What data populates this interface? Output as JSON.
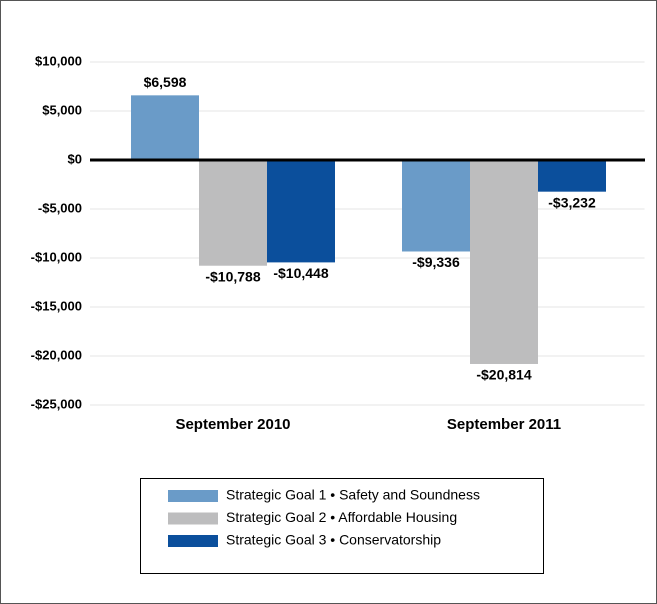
{
  "chart_data": {
    "type": "bar",
    "categories": [
      "September 2010",
      "September 2011"
    ],
    "series": [
      {
        "name": "Strategic Goal 1 • Safety and Soundness",
        "color": "#6a9bc8",
        "values": [
          6598,
          -9336
        ],
        "value_labels": [
          "$6,598",
          "-$9,336"
        ]
      },
      {
        "name": "Strategic Goal 2 • Affordable Housing",
        "color": "#bdbdbe",
        "values": [
          -10788,
          -20814
        ],
        "value_labels": [
          "-$10,788",
          "-$20,814"
        ]
      },
      {
        "name": "Strategic Goal 3 • Conservatorship",
        "color": "#0b4f9c",
        "values": [
          -10448,
          -3232
        ],
        "value_labels": [
          "-$10,448",
          "-$3,232"
        ]
      }
    ],
    "ylim": [
      -25000,
      10000
    ],
    "yticks": [
      {
        "value": -25000,
        "label": "-$25,000"
      },
      {
        "value": -20000,
        "label": "-$20,000"
      },
      {
        "value": -15000,
        "label": "-$15,000"
      },
      {
        "value": -10000,
        "label": "-$10,000"
      },
      {
        "value": -5000,
        "label": "-$5,000"
      },
      {
        "value": 0,
        "label": "$0"
      },
      {
        "value": 5000,
        "label": "$5,000"
      },
      {
        "value": 10000,
        "label": "$10,000"
      }
    ],
    "grid": true
  }
}
